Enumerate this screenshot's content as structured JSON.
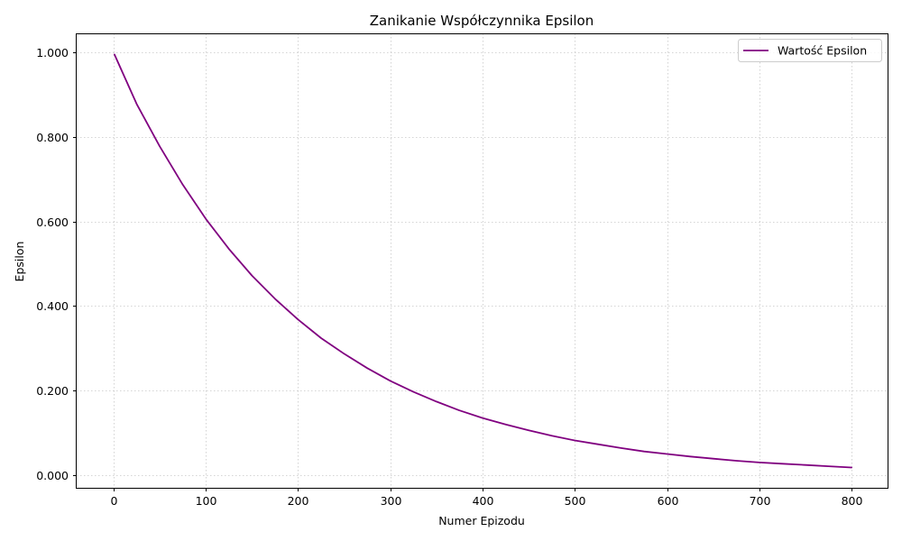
{
  "chart_data": {
    "type": "line",
    "title": "Zanikanie Współczynnika Epsilon",
    "xlabel": "Numer Epizodu",
    "ylabel": "Epsilon",
    "xlim": [
      -40,
      840
    ],
    "ylim": [
      -0.03,
      1.045
    ],
    "xticks": [
      0,
      100,
      200,
      300,
      400,
      500,
      600,
      700,
      800
    ],
    "xtick_labels": [
      "0",
      "100",
      "200",
      "300",
      "400",
      "500",
      "600",
      "700",
      "800"
    ],
    "yticks": [
      0.0,
      0.2,
      0.4,
      0.6,
      0.8,
      1.0
    ],
    "ytick_labels": [
      "0.000",
      "0.200",
      "0.400",
      "0.600",
      "0.800",
      "1.000"
    ],
    "grid": true,
    "legend_position": "top-right",
    "series": [
      {
        "name": "Wartość Epsilon",
        "color": "#800080",
        "x": [
          1,
          25,
          50,
          75,
          100,
          125,
          150,
          175,
          200,
          225,
          250,
          275,
          300,
          325,
          350,
          375,
          400,
          425,
          450,
          475,
          500,
          525,
          550,
          575,
          600,
          625,
          650,
          675,
          700,
          725,
          750,
          775,
          800
        ],
        "y": [
          0.995,
          0.878,
          0.778,
          0.687,
          0.606,
          0.535,
          0.472,
          0.417,
          0.368,
          0.324,
          0.287,
          0.253,
          0.223,
          0.197,
          0.174,
          0.153,
          0.135,
          0.12,
          0.106,
          0.093,
          0.082,
          0.073,
          0.064,
          0.056,
          0.05,
          0.044,
          0.039,
          0.034,
          0.03,
          0.027,
          0.024,
          0.021,
          0.018
        ]
      }
    ]
  }
}
